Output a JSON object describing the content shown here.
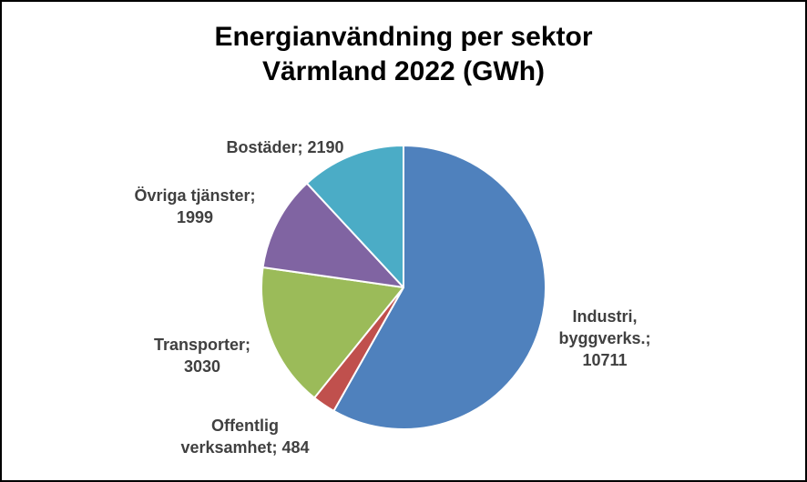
{
  "chart_data": {
    "type": "pie",
    "title_lines": [
      "Energianvändning per sektor",
      "Värmland 2022 (GWh)"
    ],
    "slices": [
      {
        "label_lines": [
          "Industri,",
          "byggverks.;",
          "10711"
        ],
        "category": "Industri, byggverks.",
        "value": 10711,
        "color": "#4F81BD"
      },
      {
        "label_lines": [
          "Offentlig",
          "verksamhet; 484"
        ],
        "category": "Offentlig verksamhet",
        "value": 484,
        "color": "#C0504D"
      },
      {
        "label_lines": [
          "Transporter;",
          "3030"
        ],
        "category": "Transporter",
        "value": 3030,
        "color": "#9BBB59"
      },
      {
        "label_lines": [
          "Övriga tjänster;",
          "1999"
        ],
        "category": "Övriga tjänster",
        "value": 1999,
        "color": "#8064A2"
      },
      {
        "label_lines": [
          "Bostäder; 2190"
        ],
        "category": "Bostäder",
        "value": 2190,
        "color": "#4BACC6"
      }
    ],
    "start_angle_deg": 0,
    "direction": "clockwise",
    "legend": "none"
  }
}
